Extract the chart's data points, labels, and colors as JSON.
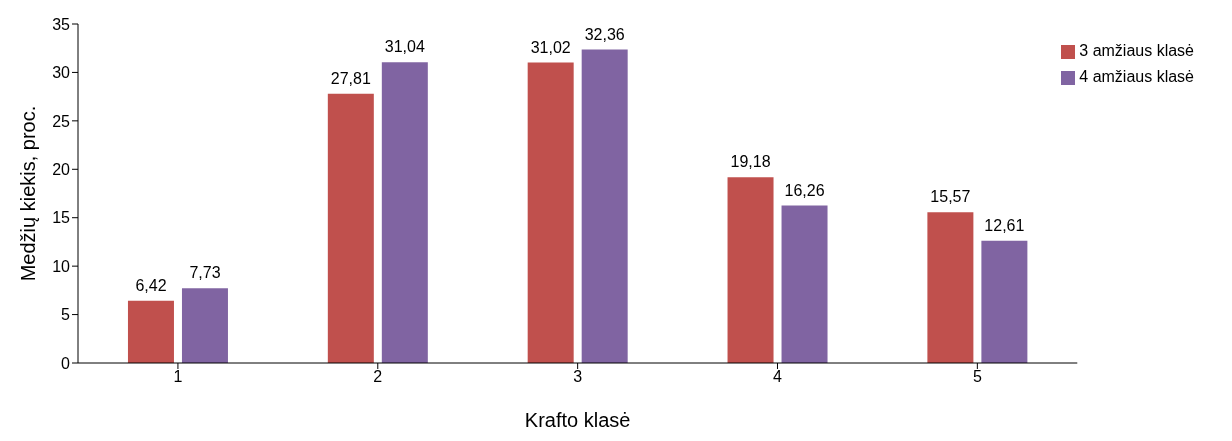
{
  "chart_data": {
    "type": "bar",
    "xlabel": "Krafto klasė",
    "ylabel": "Medžių kiekis, proc.",
    "categories": [
      "1",
      "2",
      "3",
      "4",
      "5"
    ],
    "series": [
      {
        "name": "3 amžiaus klasė",
        "color": "#c0504d",
        "values": [
          6.42,
          27.81,
          31.02,
          19.18,
          15.57
        ],
        "value_labels": [
          "6,42",
          "27,81",
          "31,02",
          "19,18",
          "15,57"
        ]
      },
      {
        "name": "4 amžiaus klasė",
        "color": "#8064a2",
        "values": [
          7.73,
          31.04,
          32.36,
          16.26,
          12.61
        ],
        "value_labels": [
          "7,73",
          "31,04",
          "32,36",
          "16,26",
          "12,61"
        ]
      }
    ],
    "ylim": [
      0,
      35
    ],
    "yticks": [
      0,
      5,
      10,
      15,
      20,
      25,
      30,
      35
    ],
    "grid": false,
    "legend": "top right"
  }
}
